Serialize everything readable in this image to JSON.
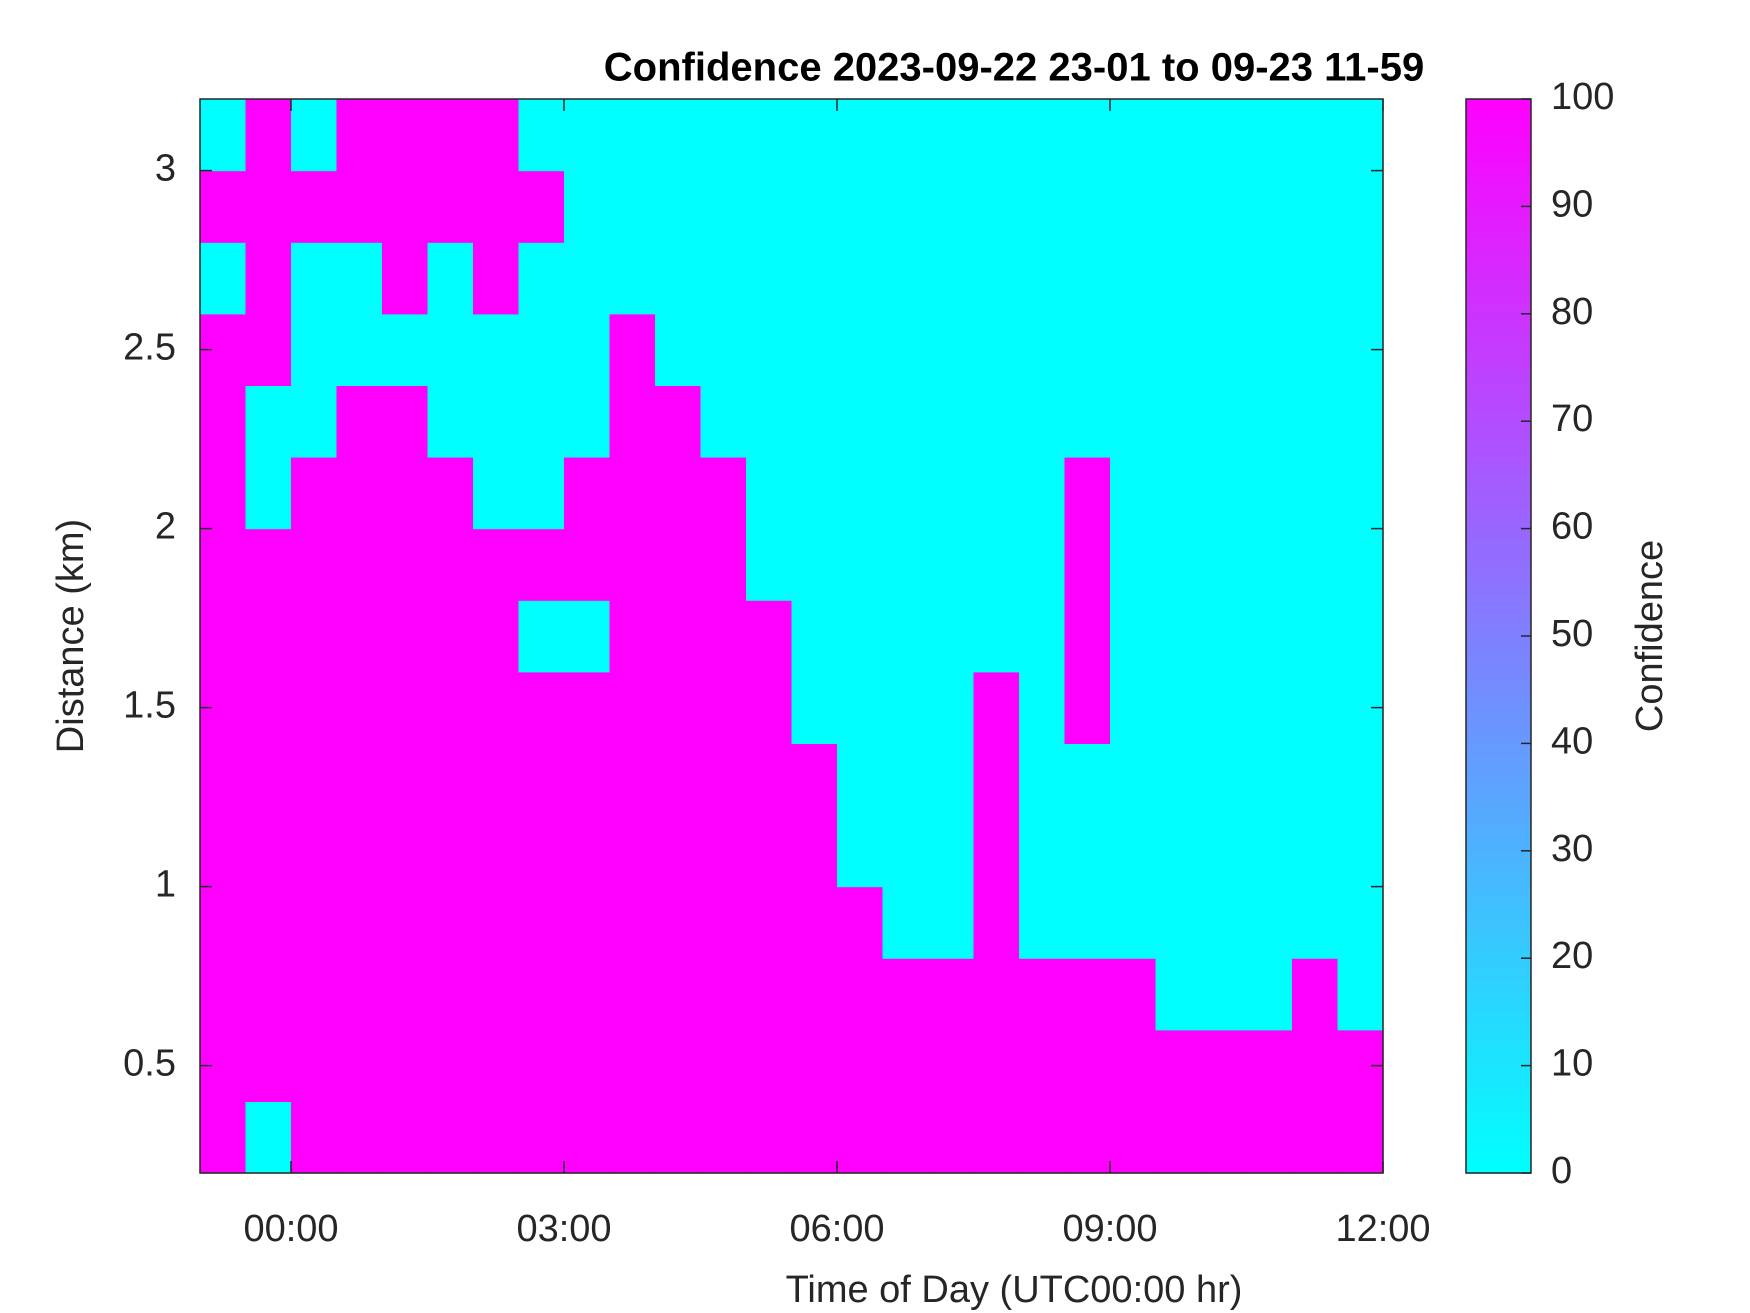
{
  "chart_data": {
    "type": "heatmap",
    "title": "Confidence 2023-09-22 23-01 to 09-23 11-59",
    "x_label": "Time of Day (UTC00:00 hr)",
    "y_label": "Distance (km)",
    "colorbar_label": "Confidence",
    "colormap": "cool",
    "x": [
      -0.75,
      -0.25,
      0.25,
      0.75,
      1.25,
      1.75,
      2.25,
      2.75,
      3.25,
      3.75,
      4.25,
      4.75,
      5.25,
      5.75,
      6.25,
      6.75,
      7.25,
      7.75,
      8.25,
      8.75,
      9.25,
      9.75,
      10.25,
      10.75,
      11.25,
      11.75
    ],
    "y": [
      0.3,
      0.5,
      0.7,
      0.9,
      1.1,
      1.3,
      1.5,
      1.7,
      1.9,
      2.1,
      2.3,
      2.5,
      2.7,
      2.9,
      3.1
    ],
    "z": [
      [
        100,
        100,
        100,
        100,
        100,
        100,
        100,
        100,
        100,
        100,
        100,
        100,
        0,
        100,
        0
      ],
      [
        0,
        100,
        100,
        100,
        100,
        100,
        100,
        100,
        100,
        0,
        0,
        100,
        100,
        100,
        100
      ],
      [
        100,
        100,
        100,
        100,
        100,
        100,
        100,
        100,
        100,
        100,
        0,
        0,
        0,
        100,
        0
      ],
      [
        100,
        100,
        100,
        100,
        100,
        100,
        100,
        100,
        100,
        100,
        100,
        0,
        0,
        100,
        100
      ],
      [
        100,
        100,
        100,
        100,
        100,
        100,
        100,
        100,
        100,
        100,
        100,
        0,
        100,
        100,
        100
      ],
      [
        100,
        100,
        100,
        100,
        100,
        100,
        100,
        100,
        100,
        100,
        0,
        0,
        0,
        100,
        100
      ],
      [
        100,
        100,
        100,
        100,
        100,
        100,
        100,
        100,
        100,
        0,
        0,
        0,
        100,
        100,
        100
      ],
      [
        100,
        100,
        100,
        100,
        100,
        100,
        100,
        0,
        100,
        0,
        0,
        0,
        0,
        100,
        0
      ],
      [
        100,
        100,
        100,
        100,
        100,
        100,
        100,
        0,
        100,
        100,
        0,
        0,
        0,
        0,
        0
      ],
      [
        100,
        100,
        100,
        100,
        100,
        100,
        100,
        100,
        100,
        100,
        100,
        100,
        0,
        0,
        0
      ],
      [
        100,
        100,
        100,
        100,
        100,
        100,
        100,
        100,
        100,
        100,
        100,
        0,
        0,
        0,
        0
      ],
      [
        100,
        100,
        100,
        100,
        100,
        100,
        100,
        100,
        100,
        100,
        0,
        0,
        0,
        0,
        0
      ],
      [
        100,
        100,
        100,
        100,
        100,
        100,
        100,
        100,
        0,
        0,
        0,
        0,
        0,
        0,
        0
      ],
      [
        100,
        100,
        100,
        100,
        100,
        100,
        0,
        0,
        0,
        0,
        0,
        0,
        0,
        0,
        0
      ],
      [
        100,
        100,
        100,
        100,
        0,
        0,
        0,
        0,
        0,
        0,
        0,
        0,
        0,
        0,
        0
      ],
      [
        100,
        100,
        100,
        0,
        0,
        0,
        0,
        0,
        0,
        0,
        0,
        0,
        0,
        0,
        0
      ],
      [
        100,
        100,
        100,
        0,
        0,
        0,
        0,
        0,
        0,
        0,
        0,
        0,
        0,
        0,
        0
      ],
      [
        100,
        100,
        100,
        100,
        100,
        100,
        100,
        0,
        0,
        0,
        0,
        0,
        0,
        0,
        0
      ],
      [
        100,
        100,
        100,
        0,
        0,
        0,
        0,
        0,
        0,
        0,
        0,
        0,
        0,
        0,
        0
      ],
      [
        100,
        100,
        100,
        0,
        0,
        0,
        100,
        100,
        100,
        100,
        0,
        0,
        0,
        0,
        0
      ],
      [
        100,
        100,
        100,
        0,
        0,
        0,
        0,
        0,
        0,
        0,
        0,
        0,
        0,
        0,
        0
      ],
      [
        100,
        100,
        0,
        0,
        0,
        0,
        0,
        0,
        0,
        0,
        0,
        0,
        0,
        0,
        0
      ],
      [
        100,
        100,
        0,
        0,
        0,
        0,
        0,
        0,
        0,
        0,
        0,
        0,
        0,
        0,
        0
      ],
      [
        100,
        100,
        0,
        0,
        0,
        0,
        0,
        0,
        0,
        0,
        0,
        0,
        0,
        0,
        0
      ],
      [
        100,
        100,
        100,
        0,
        0,
        0,
        0,
        0,
        0,
        0,
        0,
        0,
        0,
        0,
        0
      ],
      [
        100,
        100,
        0,
        0,
        0,
        0,
        0,
        0,
        0,
        0,
        0,
        0,
        0,
        0,
        0
      ]
    ],
    "xlim": [
      -1,
      12
    ],
    "xticks": [
      {
        "value": 0,
        "label": "00:00"
      },
      {
        "value": 3,
        "label": "03:00"
      },
      {
        "value": 6,
        "label": "06:00"
      },
      {
        "value": 9,
        "label": "09:00"
      },
      {
        "value": 12,
        "label": "12:00"
      }
    ],
    "ylim": [
      0.2,
      3.2
    ],
    "yticks": [
      0.5,
      1,
      1.5,
      2,
      2.5,
      3
    ],
    "clim": [
      0,
      100
    ],
    "cticks": [
      0,
      10,
      20,
      30,
      40,
      50,
      60,
      70,
      80,
      90,
      100
    ]
  }
}
